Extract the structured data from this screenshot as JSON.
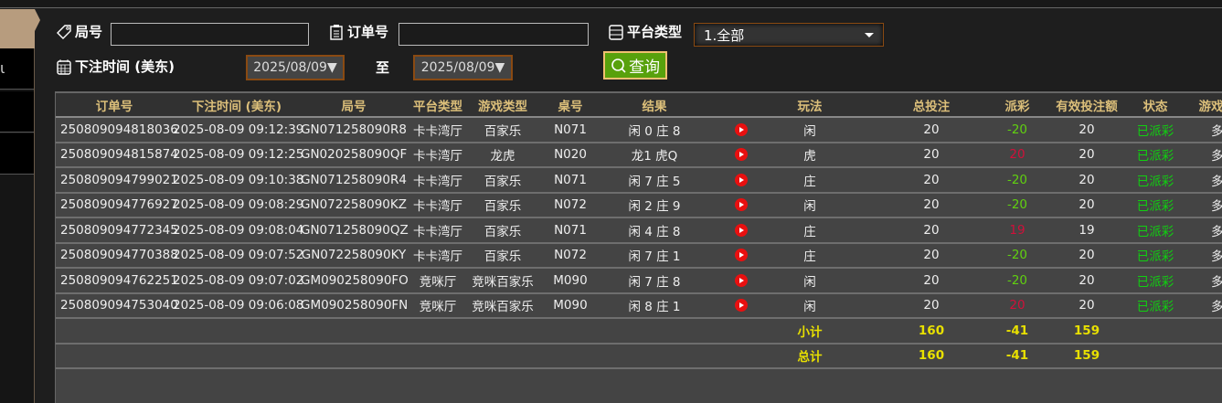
{
  "sidebar": {
    "glyph": "ι"
  },
  "filters": {
    "round_label": "局号",
    "round_value": "",
    "order_label": "订单号",
    "order_value": "",
    "platform_label": "平台类型",
    "platform_value": "1.全部",
    "time_label": "下注时间 (美东)",
    "date_from": "2025/08/09▼",
    "to_label": "至",
    "date_to": "2025/08/09▼",
    "query_label": "查询"
  },
  "colors": {
    "accent": "#dcbf7a",
    "query": "#58a10c",
    "negative_payout": "#60d010",
    "positive_payout": "#d0103a",
    "status": "#10d010",
    "totals": "#e8e000"
  },
  "table": {
    "headers": [
      "订单号",
      "下注时间 (美东)",
      "局号",
      "平台类型",
      "游戏类型",
      "桌号",
      "结果",
      "",
      "玩法",
      "总投注",
      "派彩",
      "有效投注额",
      "状态",
      "游戏模式"
    ],
    "rows": [
      {
        "order": "250809094818036",
        "time": "2025-08-09 09:12:39",
        "round": "GN071258090R8",
        "platform": "卡卡湾厅",
        "game": "百家乐",
        "table": "N071",
        "result": "闲 0 庄 8",
        "play": "闲",
        "bet": "20",
        "payout": "-20",
        "valid": "20",
        "status": "已派彩",
        "mode": "多台"
      },
      {
        "order": "250809094815874",
        "time": "2025-08-09 09:12:25",
        "round": "GN020258090QF",
        "platform": "卡卡湾厅",
        "game": "龙虎",
        "table": "N020",
        "result": "龙1 虎Q",
        "play": "虎",
        "bet": "20",
        "payout": "20",
        "valid": "20",
        "status": "已派彩",
        "mode": "多台"
      },
      {
        "order": "250809094799021",
        "time": "2025-08-09 09:10:38",
        "round": "GN071258090R4",
        "platform": "卡卡湾厅",
        "game": "百家乐",
        "table": "N071",
        "result": "闲 7 庄 5",
        "play": "庄",
        "bet": "20",
        "payout": "-20",
        "valid": "20",
        "status": "已派彩",
        "mode": "多台"
      },
      {
        "order": "250809094776927",
        "time": "2025-08-09 09:08:29",
        "round": "GN072258090KZ",
        "platform": "卡卡湾厅",
        "game": "百家乐",
        "table": "N072",
        "result": "闲 2 庄 9",
        "play": "闲",
        "bet": "20",
        "payout": "-20",
        "valid": "20",
        "status": "已派彩",
        "mode": "多台"
      },
      {
        "order": "250809094772345",
        "time": "2025-08-09 09:08:04",
        "round": "GN071258090QZ",
        "platform": "卡卡湾厅",
        "game": "百家乐",
        "table": "N071",
        "result": "闲 4 庄 8",
        "play": "庄",
        "bet": "20",
        "payout": "19",
        "valid": "19",
        "status": "已派彩",
        "mode": "多台"
      },
      {
        "order": "250809094770388",
        "time": "2025-08-09 09:07:52",
        "round": "GN072258090KY",
        "platform": "卡卡湾厅",
        "game": "百家乐",
        "table": "N072",
        "result": "闲 7 庄 1",
        "play": "庄",
        "bet": "20",
        "payout": "-20",
        "valid": "20",
        "status": "已派彩",
        "mode": "多台"
      },
      {
        "order": "250809094762251",
        "time": "2025-08-09 09:07:02",
        "round": "GM090258090FO",
        "platform": "竞咪厅",
        "game": "竞咪百家乐",
        "table": "M090",
        "result": "闲 7 庄 8",
        "play": "闲",
        "bet": "20",
        "payout": "-20",
        "valid": "20",
        "status": "已派彩",
        "mode": "多台"
      },
      {
        "order": "250809094753040",
        "time": "2025-08-09 09:06:08",
        "round": "GM090258090FN",
        "platform": "竞咪厅",
        "game": "竞咪百家乐",
        "table": "M090",
        "result": "闲 8 庄 1",
        "play": "闲",
        "bet": "20",
        "payout": "20",
        "valid": "20",
        "status": "已派彩",
        "mode": "多台"
      }
    ],
    "subtotal": {
      "label": "小计",
      "bet": "160",
      "payout": "-41",
      "valid": "159"
    },
    "total": {
      "label": "总计",
      "bet": "160",
      "payout": "-41",
      "valid": "159"
    }
  }
}
